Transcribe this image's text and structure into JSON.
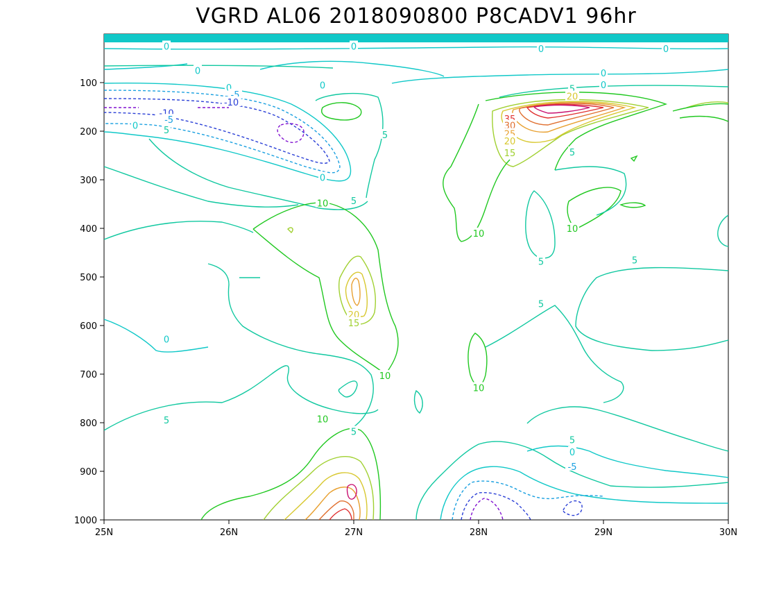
{
  "chart_data": {
    "type": "contour",
    "title": "VGRD AL06 2018090800 P8CADV1 96hr",
    "xlabel": "",
    "ylabel": "",
    "x_ticks": [
      "25N",
      "26N",
      "27N",
      "28N",
      "29N",
      "30N"
    ],
    "y_ticks": [
      "100",
      "200",
      "300",
      "400",
      "500",
      "600",
      "700",
      "800",
      "900",
      "1000"
    ],
    "xlim": [
      25,
      30
    ],
    "ylim": [
      0,
      1000
    ],
    "y_inverted": true,
    "levels_colors": {
      "-10": "#2a3fd6",
      "-5": "#1aa0e0",
      "0": "#10c8c8",
      "5": "#10c8a0",
      "10": "#20c820",
      "15": "#a0d030",
      "20": "#d8c830",
      "25": "#e8a030",
      "30": "#e07030",
      "35": "#e03030",
      "40": "#c81070",
      "-15": "#8010d0"
    },
    "contour_labels": [
      {
        "value": "0",
        "x": 25.5,
        "y": 25
      },
      {
        "value": "0",
        "x": 25.75,
        "y": 75
      },
      {
        "value": "0",
        "x": 26.0,
        "y": 110
      },
      {
        "value": "-5",
        "x": 26.05,
        "y": 124
      },
      {
        "value": "-10",
        "x": 26.02,
        "y": 140
      },
      {
        "value": "-10",
        "x": 25.5,
        "y": 162
      },
      {
        "value": "-5",
        "x": 25.52,
        "y": 176
      },
      {
        "value": "0",
        "x": 25.25,
        "y": 188
      },
      {
        "value": "5",
        "x": 25.5,
        "y": 197
      },
      {
        "value": "0",
        "x": 26.75,
        "y": 105
      },
      {
        "value": "0",
        "x": 27.0,
        "y": 25
      },
      {
        "value": "5",
        "x": 27.25,
        "y": 207
      },
      {
        "value": "0",
        "x": 26.75,
        "y": 295
      },
      {
        "value": "5",
        "x": 27.0,
        "y": 343
      },
      {
        "value": "10",
        "x": 26.75,
        "y": 348
      },
      {
        "value": "20",
        "x": 27.0,
        "y": 577
      },
      {
        "value": "15",
        "x": 27.0,
        "y": 594
      },
      {
        "value": "10",
        "x": 27.25,
        "y": 703
      },
      {
        "value": "5",
        "x": 27.0,
        "y": 818
      },
      {
        "value": "10",
        "x": 26.75,
        "y": 792
      },
      {
        "value": "0",
        "x": 25.5,
        "y": 628
      },
      {
        "value": "5",
        "x": 25.5,
        "y": 794
      },
      {
        "value": "0",
        "x": 28.5,
        "y": 30
      },
      {
        "value": "0",
        "x": 29.0,
        "y": 80
      },
      {
        "value": "0",
        "x": 29.0,
        "y": 104
      },
      {
        "value": "0",
        "x": 29.5,
        "y": 30
      },
      {
        "value": "5",
        "x": 28.75,
        "y": 112
      },
      {
        "value": "20",
        "x": 28.75,
        "y": 128
      },
      {
        "value": "35",
        "x": 28.25,
        "y": 174
      },
      {
        "value": "30",
        "x": 28.25,
        "y": 188
      },
      {
        "value": "25",
        "x": 28.25,
        "y": 205
      },
      {
        "value": "20",
        "x": 28.25,
        "y": 220
      },
      {
        "value": "15",
        "x": 28.25,
        "y": 244
      },
      {
        "value": "5",
        "x": 28.75,
        "y": 243
      },
      {
        "value": "10",
        "x": 28.0,
        "y": 410
      },
      {
        "value": "10",
        "x": 28.75,
        "y": 400
      },
      {
        "value": "5",
        "x": 28.5,
        "y": 468
      },
      {
        "value": "5",
        "x": 29.25,
        "y": 465
      },
      {
        "value": "5",
        "x": 28.5,
        "y": 555
      },
      {
        "value": "10",
        "x": 28.0,
        "y": 728
      },
      {
        "value": "5",
        "x": 28.75,
        "y": 835
      },
      {
        "value": "0",
        "x": 28.75,
        "y": 860
      },
      {
        "value": "-5",
        "x": 28.75,
        "y": 890
      }
    ]
  }
}
